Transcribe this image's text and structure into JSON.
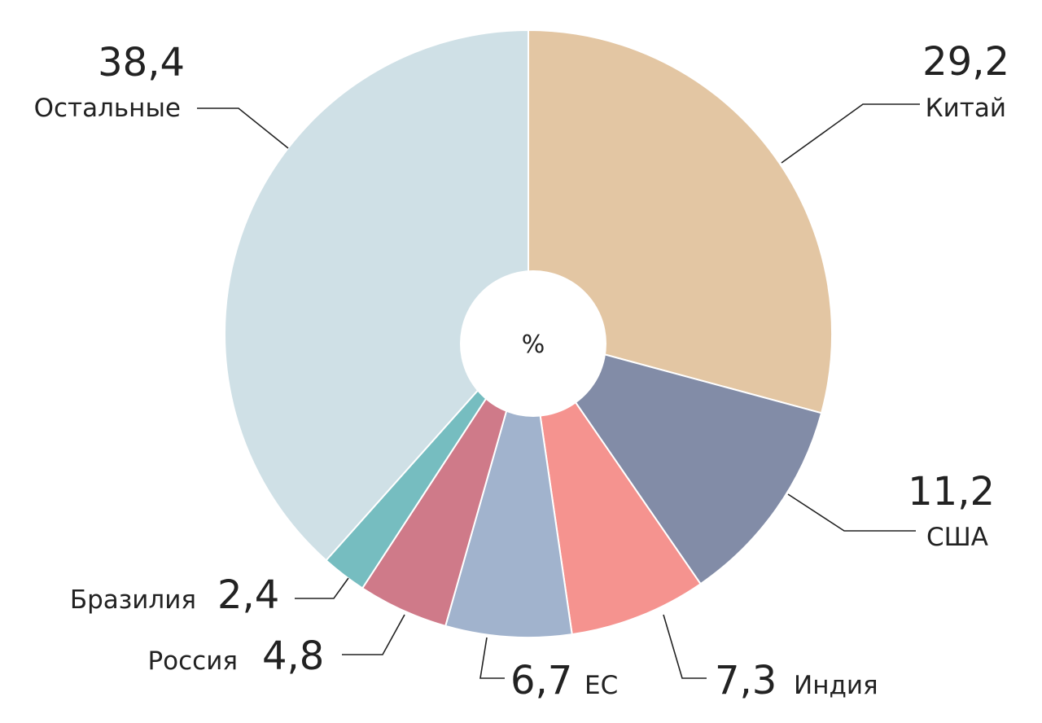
{
  "chart_data": {
    "type": "pie",
    "unit": "%",
    "slices": [
      {
        "label": "Китай",
        "value": 29.2,
        "value_text": "29,2",
        "color": "#e3c6a3"
      },
      {
        "label": "США",
        "value": 11.2,
        "value_text": "11,2",
        "color": "#828ca7"
      },
      {
        "label": "Индия",
        "value": 7.3,
        "value_text": "7,3",
        "color": "#f5938f"
      },
      {
        "label": "ЕС",
        "value": 6.7,
        "value_text": "6,7",
        "color": "#a1b3cd"
      },
      {
        "label": "Россия",
        "value": 4.8,
        "value_text": "4,8",
        "color": "#cf7a89"
      },
      {
        "label": "Бразилия",
        "value": 2.4,
        "value_text": "2,4",
        "color": "#76bdc0"
      },
      {
        "label": "Остальные",
        "value": 38.4,
        "value_text": "38,4",
        "color": "#cfe0e6"
      }
    ]
  }
}
